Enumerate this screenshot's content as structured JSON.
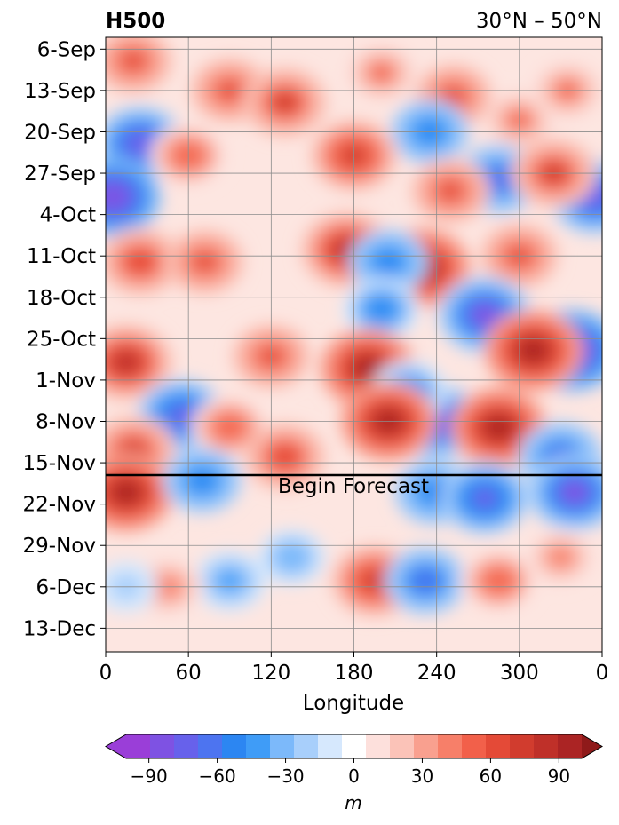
{
  "chart_data": {
    "type": "heatmap",
    "title_left": "H500",
    "title_right": "30°N – 50°N",
    "xlabel": "Longitude",
    "ylabel": "",
    "x_ticks": [
      "0",
      "60",
      "120",
      "180",
      "240",
      "300",
      "0"
    ],
    "x_tick_values": [
      0,
      60,
      120,
      180,
      240,
      300,
      360
    ],
    "y_ticks": [
      "6-Sep",
      "13-Sep",
      "20-Sep",
      "27-Sep",
      "4-Oct",
      "11-Oct",
      "18-Oct",
      "25-Oct",
      "1-Nov",
      "8-Nov",
      "15-Nov",
      "22-Nov",
      "29-Nov",
      "6-Dec",
      "13-Dec"
    ],
    "xlim": [
      0,
      360
    ],
    "ylim": [
      "4-Sep",
      "17-Dec"
    ],
    "grid": true,
    "annotation": {
      "text": "Begin Forecast",
      "date": "17-Nov",
      "longitude": 180
    },
    "colorbar": {
      "label": "m",
      "ticks": [
        "−90",
        "−60",
        "−30",
        "0",
        "30",
        "60",
        "90"
      ],
      "tick_values": [
        -90,
        -60,
        -30,
        0,
        30,
        60,
        90
      ],
      "levels": [
        -100,
        -90,
        -80,
        -70,
        -60,
        -50,
        -40,
        -30,
        -20,
        -10,
        10,
        20,
        30,
        40,
        50,
        60,
        70,
        80,
        90,
        100
      ],
      "extend": "both",
      "colors": [
        "#9a3ed8",
        "#7e52e3",
        "#6761eb",
        "#4d74f0",
        "#2c86f2",
        "#3f9cf7",
        "#7cb9fa",
        "#a8cffb",
        "#d6e8fd",
        "#ffffff",
        "#fde0dc",
        "#fbc3b8",
        "#f9a08f",
        "#f77f69",
        "#f2604a",
        "#e44a37",
        "#d13c2e",
        "#bf3029",
        "#ab2424",
        "#8f1a1a"
      ]
    },
    "features": [
      {
        "lon": 300,
        "date": "18-Sep",
        "value": 50
      },
      {
        "lon": 252,
        "date": "14-Sep",
        "value": 60
      },
      {
        "lon": 90,
        "date": "13-Sep",
        "value": 60
      },
      {
        "lon": 130,
        "date": "15-Sep",
        "value": 70
      },
      {
        "lon": 20,
        "date": "8-Sep",
        "value": 60
      },
      {
        "lon": 200,
        "date": "10-Sep",
        "value": 50
      },
      {
        "lon": 335,
        "date": "13-Sep",
        "value": 50
      },
      {
        "lon": 25,
        "date": "22-Sep",
        "value": -80
      },
      {
        "lon": 235,
        "date": "20-Sep",
        "value": -60
      },
      {
        "lon": 285,
        "date": "28-Sep",
        "value": -70
      },
      {
        "lon": 5,
        "date": "1-Oct",
        "value": -90
      },
      {
        "lon": 355,
        "date": "1-Oct",
        "value": -80
      },
      {
        "lon": 180,
        "date": "24-Sep",
        "value": 75
      },
      {
        "lon": 60,
        "date": "24-Sep",
        "value": 55
      },
      {
        "lon": 325,
        "date": "27-Sep",
        "value": 70
      },
      {
        "lon": 250,
        "date": "30-Sep",
        "value": 60
      },
      {
        "lon": 25,
        "date": "12-Oct",
        "value": 65
      },
      {
        "lon": 72,
        "date": "12-Oct",
        "value": 60
      },
      {
        "lon": 175,
        "date": "10-Oct",
        "value": 85
      },
      {
        "lon": 230,
        "date": "13-Oct",
        "value": 90
      },
      {
        "lon": 300,
        "date": "11-Oct",
        "value": 60
      },
      {
        "lon": 205,
        "date": "12-Oct",
        "value": -60
      },
      {
        "lon": 275,
        "date": "21-Oct",
        "value": -85
      },
      {
        "lon": 338,
        "date": "27-Oct",
        "value": -95
      },
      {
        "lon": 200,
        "date": "20-Oct",
        "value": -55
      },
      {
        "lon": 15,
        "date": "29-Oct",
        "value": 85
      },
      {
        "lon": 190,
        "date": "30-Oct",
        "value": 90
      },
      {
        "lon": 310,
        "date": "27-Oct",
        "value": 95
      },
      {
        "lon": 120,
        "date": "28-Oct",
        "value": 60
      },
      {
        "lon": 55,
        "date": "7-Nov",
        "value": -75
      },
      {
        "lon": 240,
        "date": "8-Nov",
        "value": -80
      },
      {
        "lon": 220,
        "date": "3-Nov",
        "value": -55
      },
      {
        "lon": 205,
        "date": "8-Nov",
        "value": 90
      },
      {
        "lon": 285,
        "date": "9-Nov",
        "value": 90
      },
      {
        "lon": 90,
        "date": "9-Nov",
        "value": 55
      },
      {
        "lon": 20,
        "date": "13-Nov",
        "value": 70
      },
      {
        "lon": 130,
        "date": "14-Nov",
        "value": 65
      },
      {
        "lon": 330,
        "date": "14-Nov",
        "value": -70
      },
      {
        "lon": 15,
        "date": "20-Nov",
        "value": 90
      },
      {
        "lon": 70,
        "date": "18-Nov",
        "value": -60
      },
      {
        "lon": 238,
        "date": "20-Nov",
        "value": -60
      },
      {
        "lon": 275,
        "date": "21-Nov",
        "value": -75
      },
      {
        "lon": 340,
        "date": "20-Nov",
        "value": -85
      },
      {
        "lon": 90,
        "date": "5-Dec",
        "value": -50
      },
      {
        "lon": 195,
        "date": "5-Dec",
        "value": 75
      },
      {
        "lon": 232,
        "date": "5-Dec",
        "value": -65
      },
      {
        "lon": 285,
        "date": "5-Dec",
        "value": 55
      },
      {
        "lon": 135,
        "date": "1-Dec",
        "value": -40
      },
      {
        "lon": 45,
        "date": "6-Dec",
        "value": 45
      },
      {
        "lon": 330,
        "date": "1-Dec",
        "value": 40
      },
      {
        "lon": 15,
        "date": "6-Dec",
        "value": -30
      }
    ]
  }
}
